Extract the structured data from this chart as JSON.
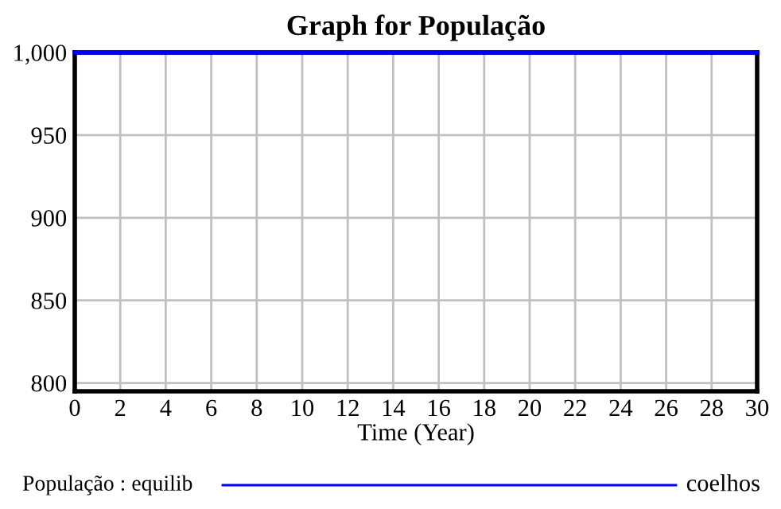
{
  "chart_data": {
    "type": "line",
    "title": "Graph for População",
    "xlabel": "Time (Year)",
    "x": [
      0,
      30
    ],
    "series": [
      {
        "name": "População : equilib",
        "color": "#0000ff",
        "values": [
          1000,
          1000
        ]
      }
    ],
    "annotations": [
      "coelhos"
    ],
    "xlim": [
      0,
      30
    ],
    "xticks": [
      0,
      2,
      4,
      6,
      8,
      10,
      12,
      14,
      16,
      18,
      20,
      22,
      24,
      26,
      28,
      30
    ],
    "ylim": [
      795,
      1000
    ],
    "yticks": [
      {
        "value": 800,
        "label": "800"
      },
      {
        "value": 850,
        "label": "850"
      },
      {
        "value": 900,
        "label": "900"
      },
      {
        "value": 950,
        "label": "950"
      },
      {
        "value": 1000,
        "label": "1,000"
      }
    ],
    "grid": true,
    "legend": "bottom",
    "marker": "none",
    "line_style": "solid"
  }
}
